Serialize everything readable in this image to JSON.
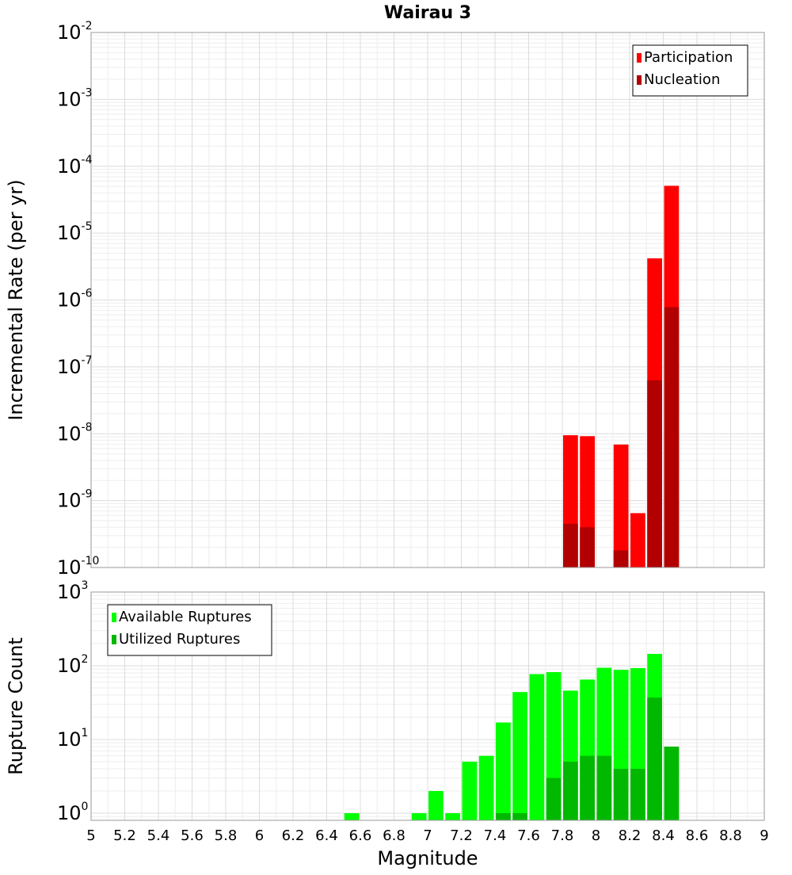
{
  "chart_data": {
    "title": "Wairau 3",
    "xlabel": "Magnitude",
    "xlim": [
      5,
      9
    ],
    "x_ticks": [
      "5",
      "5.2",
      "5.4",
      "5.6",
      "5.8",
      "6",
      "6.2",
      "6.4",
      "6.6",
      "6.8",
      "7",
      "7.2",
      "7.4",
      "7.6",
      "7.8",
      "8",
      "8.2",
      "8.4",
      "8.6",
      "8.8",
      "9"
    ],
    "bin_width": 0.1,
    "panels": [
      {
        "type": "bar",
        "ylabel": "Incremental Rate (per yr)",
        "yscale": "log",
        "ylim": [
          1e-10,
          0.01
        ],
        "y_tick_base": "10",
        "y_tick_exponents": [
          "-2",
          "-3",
          "-4",
          "-5",
          "-6",
          "-7",
          "-8",
          "-9",
          "-10"
        ],
        "legend_position": "top-right",
        "grid": true,
        "series": [
          {
            "name": "Participation",
            "color": "#ff0000",
            "x": [
              7.85,
              7.95,
              8.15,
              8.25,
              8.35,
              8.45
            ],
            "values": [
              9.5e-09,
              9.2e-09,
              6.9e-09,
              6.5e-10,
              4.2e-06,
              5.1e-05
            ]
          },
          {
            "name": "Nucleation",
            "color": "#b20000",
            "x": [
              7.85,
              7.95,
              8.15,
              8.35,
              8.45
            ],
            "values": [
              4.5e-10,
              4e-10,
              1.8e-10,
              6.3e-08,
              7.8e-07
            ]
          }
        ]
      },
      {
        "type": "bar",
        "ylabel": "Rupture Count",
        "yscale": "log",
        "ylim": [
          0.8,
          1000
        ],
        "y_tick_base": "10",
        "y_tick_exponents": [
          "3",
          "2",
          "1",
          "0"
        ],
        "legend_position": "top-left",
        "grid": true,
        "series": [
          {
            "name": "Available Ruptures",
            "color": "#00ff00",
            "x": [
              6.55,
              6.95,
              7.05,
              7.15,
              7.25,
              7.35,
              7.45,
              7.55,
              7.65,
              7.75,
              7.85,
              7.95,
              8.05,
              8.15,
              8.25,
              8.35,
              8.45
            ],
            "values": [
              1,
              1,
              2,
              1,
              5,
              6,
              17,
              44,
              77,
              82,
              46,
              65,
              94,
              88,
              93,
              145,
              8
            ]
          },
          {
            "name": "Utilized Ruptures",
            "color": "#00b800",
            "x": [
              7.45,
              7.55,
              7.75,
              7.85,
              7.95,
              8.05,
              8.15,
              8.25,
              8.35,
              8.45
            ],
            "values": [
              1,
              1,
              3,
              5,
              6,
              6,
              4,
              4,
              37,
              8
            ]
          }
        ]
      }
    ]
  }
}
